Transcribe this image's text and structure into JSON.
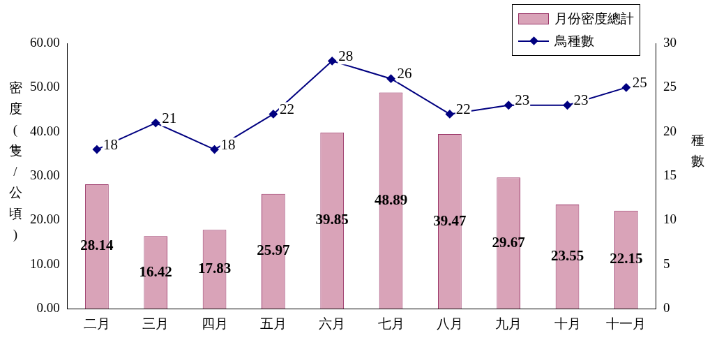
{
  "chart_data": {
    "type": "bar",
    "ylabel": "密度(隻/公頃)",
    "y2label": "種數",
    "categories": [
      "二月",
      "三月",
      "四月",
      "五月",
      "六月",
      "七月",
      "八月",
      "九月",
      "十月",
      "十一月"
    ],
    "series": [
      {
        "name": "月份密度總計",
        "color": "#d9a3b8",
        "values": [
          28.14,
          16.42,
          17.83,
          25.97,
          39.85,
          48.89,
          39.47,
          29.67,
          23.55,
          22.15
        ]
      },
      {
        "name": "鳥種數",
        "type": "line",
        "axis": "y2",
        "color": "#000080",
        "marker": "diamond",
        "values": [
          18,
          21,
          18,
          22,
          28,
          26,
          22,
          23,
          23,
          25
        ]
      }
    ],
    "ylim": [
      0,
      60
    ],
    "yticks": [
      {
        "value": 0,
        "label": "0.00"
      },
      {
        "value": 10,
        "label": "10.00"
      },
      {
        "value": 20,
        "label": "20.00"
      },
      {
        "value": 30,
        "label": "30.00"
      },
      {
        "value": 40,
        "label": "40.00"
      },
      {
        "value": 50,
        "label": "50.00"
      },
      {
        "value": 60,
        "label": "60.00"
      }
    ],
    "y2lim": [
      0,
      30
    ],
    "y2ticks": [
      0,
      5,
      10,
      15,
      20,
      25,
      30
    ],
    "grid": false,
    "legend": "top right",
    "data_labels": true
  }
}
